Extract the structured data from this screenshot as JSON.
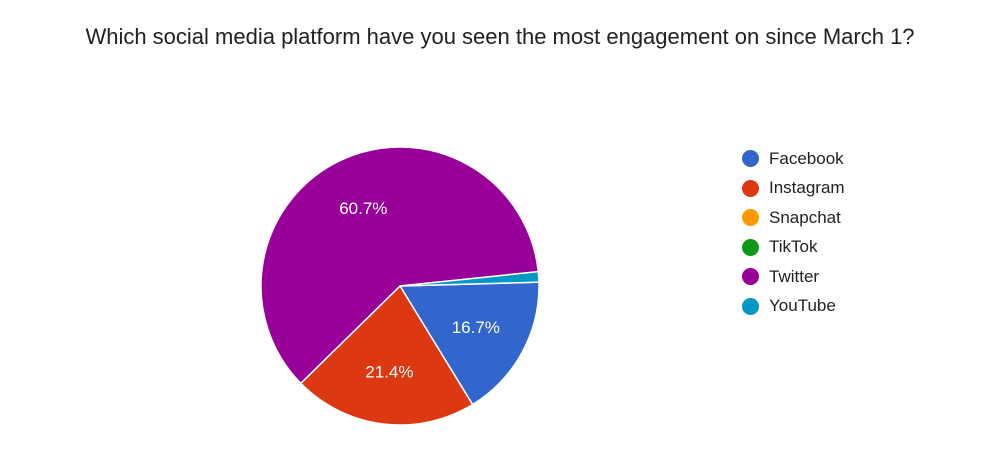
{
  "chart_data": {
    "type": "pie",
    "title": "Which social media platform have you seen the most engagement on since March 1?",
    "categories": [
      "Facebook",
      "Instagram",
      "Snapchat",
      "TikTok",
      "Twitter",
      "YouTube"
    ],
    "values": [
      16.7,
      21.4,
      0,
      0,
      60.7,
      1.2
    ],
    "colors": [
      "#3366cc",
      "#dc3912",
      "#ff9900",
      "#109618",
      "#990099",
      "#0099c6"
    ],
    "data_labels": [
      "16.7%",
      "21.4%",
      "",
      "",
      "60.7%",
      ""
    ],
    "legend_position": "right"
  }
}
